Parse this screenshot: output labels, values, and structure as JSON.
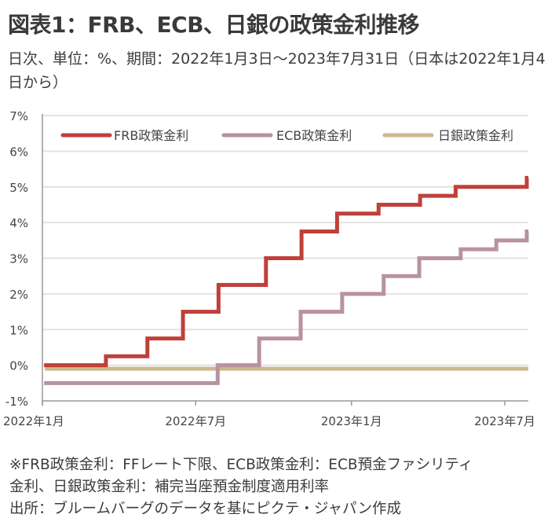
{
  "header": {
    "title": "図表1：FRB、ECB、日銀の政策金利推移",
    "subtitle": "日次、単位：%、期間：2022年1月3日～2023年7月31日（日本は2022年1月4日から）"
  },
  "notes": [
    "※FRB政策金利：FFレート下限、ECB政策金利：ECB預金ファシリティ",
    "金利、日銀政策金利：補完当座預金制度適用利率",
    "出所：ブルームバーグのデータを基にピクテ・ジャパン作成"
  ],
  "chart_data": {
    "type": "line",
    "step": true,
    "title": "図表1：FRB、ECB、日銀の政策金利推移",
    "xlabel": "",
    "ylabel": "",
    "x_range": [
      "2022-01-01",
      "2023-07-31"
    ],
    "ylim": [
      -1,
      7
    ],
    "y_ticks": [
      {
        "value": 7,
        "label": "7%"
      },
      {
        "value": 6,
        "label": "6%"
      },
      {
        "value": 5,
        "label": "5%"
      },
      {
        "value": 4,
        "label": "4%"
      },
      {
        "value": 3,
        "label": "3%"
      },
      {
        "value": 2,
        "label": "2%"
      },
      {
        "value": 1,
        "label": "1%"
      },
      {
        "value": 0,
        "label": "0%"
      },
      {
        "value": -1,
        "label": "-1%"
      }
    ],
    "x_ticks": [
      {
        "date": "2022-01-01",
        "label": "2022年1月"
      },
      {
        "date": "2022-07-01",
        "label": "2022年7月"
      },
      {
        "date": "2023-01-01",
        "label": "2023年1月"
      },
      {
        "date": "2023-07-01",
        "label": "2023年7月"
      }
    ],
    "grid": true,
    "legend_position": "top",
    "series": [
      {
        "name": "FRB政策金利",
        "color": "#c0403a",
        "points": [
          [
            "2022-01-03",
            0.0
          ],
          [
            "2022-03-17",
            0.25
          ],
          [
            "2022-05-05",
            0.75
          ],
          [
            "2022-06-16",
            1.5
          ],
          [
            "2022-07-28",
            2.25
          ],
          [
            "2022-09-22",
            3.0
          ],
          [
            "2022-11-03",
            3.75
          ],
          [
            "2022-12-15",
            4.25
          ],
          [
            "2023-02-02",
            4.5
          ],
          [
            "2023-03-23",
            4.75
          ],
          [
            "2023-05-04",
            5.0
          ],
          [
            "2023-07-27",
            5.25
          ],
          [
            "2023-07-31",
            5.25
          ]
        ]
      },
      {
        "name": "ECB政策金利",
        "color": "#b8929f",
        "points": [
          [
            "2022-01-03",
            -0.5
          ],
          [
            "2022-07-27",
            0.0
          ],
          [
            "2022-09-14",
            0.75
          ],
          [
            "2022-11-02",
            1.5
          ],
          [
            "2022-12-21",
            2.0
          ],
          [
            "2023-02-08",
            2.5
          ],
          [
            "2023-03-22",
            3.0
          ],
          [
            "2023-05-10",
            3.25
          ],
          [
            "2023-06-21",
            3.5
          ],
          [
            "2023-07-27",
            3.75
          ],
          [
            "2023-07-31",
            3.75
          ]
        ]
      },
      {
        "name": "日銀政策金利",
        "color": "#cdb78e",
        "points": [
          [
            "2022-01-04",
            -0.1
          ],
          [
            "2023-07-31",
            -0.1
          ]
        ]
      }
    ]
  }
}
